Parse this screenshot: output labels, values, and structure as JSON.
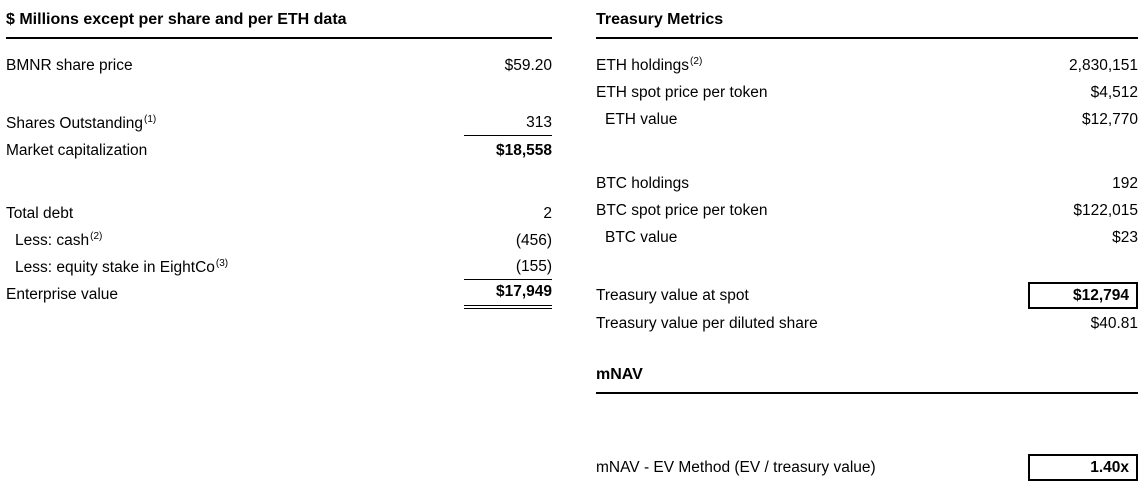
{
  "colors": {
    "text": "#000000",
    "background": "#ffffff",
    "rule": "#000000"
  },
  "left": {
    "header": "$ Millions except per share and per ETH data",
    "rows": {
      "bmnr": {
        "label": "BMNR share price",
        "value": "$59.20"
      },
      "shares": {
        "label": "Shares Outstanding",
        "sup": "(1)",
        "value": "313"
      },
      "mktcap": {
        "label": "Market capitalization",
        "value": "$18,558"
      },
      "debt": {
        "label": "Total debt",
        "value": "2"
      },
      "cash": {
        "label": "Less: cash",
        "sup": "(2)",
        "value": "(456)"
      },
      "eightco": {
        "label": "Less: equity stake in EightCo",
        "sup": "(3)",
        "value": "(155)"
      },
      "ev": {
        "label": "Enterprise value",
        "value": "$17,949"
      }
    }
  },
  "right": {
    "header": "Treasury Metrics",
    "rows": {
      "eth_holdings": {
        "label": "ETH holdings",
        "sup": "(2)",
        "value": "2,830,151"
      },
      "eth_spot": {
        "label": "ETH spot price per token",
        "value": "$4,512"
      },
      "eth_value": {
        "label": "ETH value",
        "value": "$12,770"
      },
      "btc_holdings": {
        "label": "BTC holdings",
        "value": "192"
      },
      "btc_spot": {
        "label": "BTC spot price per token",
        "value": "$122,015"
      },
      "btc_value": {
        "label": "BTC value",
        "value": "$23"
      },
      "treasury_spot": {
        "label": "Treasury value at spot",
        "value": "$12,794"
      },
      "treasury_per_share": {
        "label": "Treasury value per diluted share",
        "value": "$40.81"
      }
    },
    "mnav": {
      "header": "mNAV",
      "label": "mNAV - EV Method (EV / treasury value)",
      "value": "1.40x"
    }
  }
}
